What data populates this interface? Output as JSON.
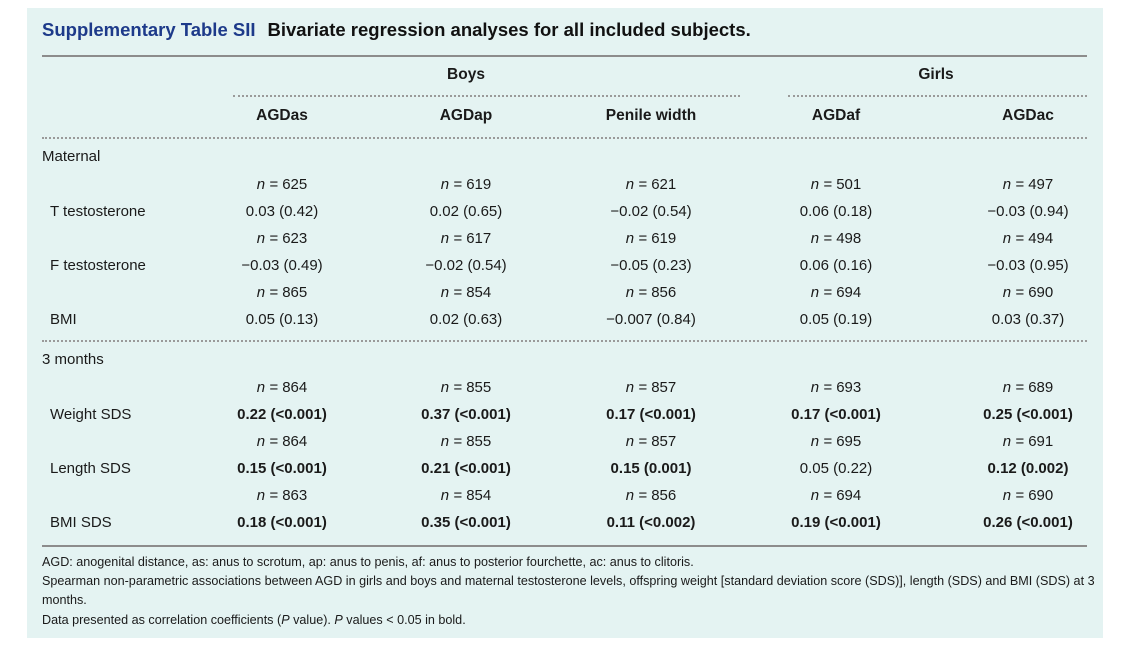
{
  "title": {
    "label": "Supplementary Table SII",
    "caption": "Bivariate regression analyses for all included subjects."
  },
  "groups": {
    "boys": "Boys",
    "girls": "Girls"
  },
  "columns": [
    "AGDas",
    "AGDap",
    "Penile width",
    "AGDaf",
    "AGDac"
  ],
  "sections": [
    {
      "label": "Maternal",
      "rows": [
        {
          "label": "T testosterone",
          "n": [
            "625",
            "619",
            "621",
            "501",
            "497"
          ],
          "values": [
            "0.03 (0.42)",
            "0.02 (0.65)",
            "−0.02 (0.54)",
            "0.06 (0.18)",
            "−0.03 (0.94)"
          ],
          "bold": [
            false,
            false,
            false,
            false,
            false
          ]
        },
        {
          "label": "F testosterone",
          "n": [
            "623",
            "617",
            "619",
            "498",
            "494"
          ],
          "values": [
            "−0.03 (0.49)",
            "−0.02 (0.54)",
            "−0.05 (0.23)",
            "0.06 (0.16)",
            "−0.03 (0.95)"
          ],
          "bold": [
            false,
            false,
            false,
            false,
            false
          ]
        },
        {
          "label": "BMI",
          "n": [
            "865",
            "854",
            "856",
            "694",
            "690"
          ],
          "values": [
            "0.05 (0.13)",
            "0.02 (0.63)",
            "−0.007 (0.84)",
            "0.05 (0.19)",
            "0.03 (0.37)"
          ],
          "bold": [
            false,
            false,
            false,
            false,
            false
          ]
        }
      ]
    },
    {
      "label": "3 months",
      "rows": [
        {
          "label": "Weight SDS",
          "n": [
            "864",
            "855",
            "857",
            "693",
            "689"
          ],
          "values": [
            "0.22 (<0.001)",
            "0.37 (<0.001)",
            "0.17 (<0.001)",
            "0.17 (<0.001)",
            "0.25 (<0.001)"
          ],
          "bold": [
            true,
            true,
            true,
            true,
            true
          ]
        },
        {
          "label": "Length SDS",
          "n": [
            "864",
            "855",
            "857",
            "695",
            "691"
          ],
          "values": [
            "0.15 (<0.001)",
            "0.21 (<0.001)",
            "0.15 (0.001)",
            "0.05 (0.22)",
            "0.12 (0.002)"
          ],
          "bold": [
            true,
            true,
            true,
            false,
            true
          ]
        },
        {
          "label": "BMI SDS",
          "n": [
            "863",
            "854",
            "856",
            "694",
            "690"
          ],
          "values": [
            "0.18 (<0.001)",
            "0.35 (<0.001)",
            "0.11 (<0.002)",
            "0.19 (<0.001)",
            "0.26 (<0.001)"
          ],
          "bold": [
            true,
            true,
            true,
            true,
            true
          ]
        }
      ]
    }
  ],
  "n_prefix": "n = ",
  "footnotes": [
    "AGD: anogenital distance, as: anus to scrotum, ap: anus to penis, af: anus to posterior fourchette, ac: anus to clitoris.",
    "Spearman non-parametric associations between AGD in girls and boys and maternal testosterone levels, offspring weight [standard deviation score (SDS)], length (SDS) and BMI (SDS) at 3 months.",
    "Data presented as correlation coefficients (P value). P values < 0.05 in bold."
  ]
}
